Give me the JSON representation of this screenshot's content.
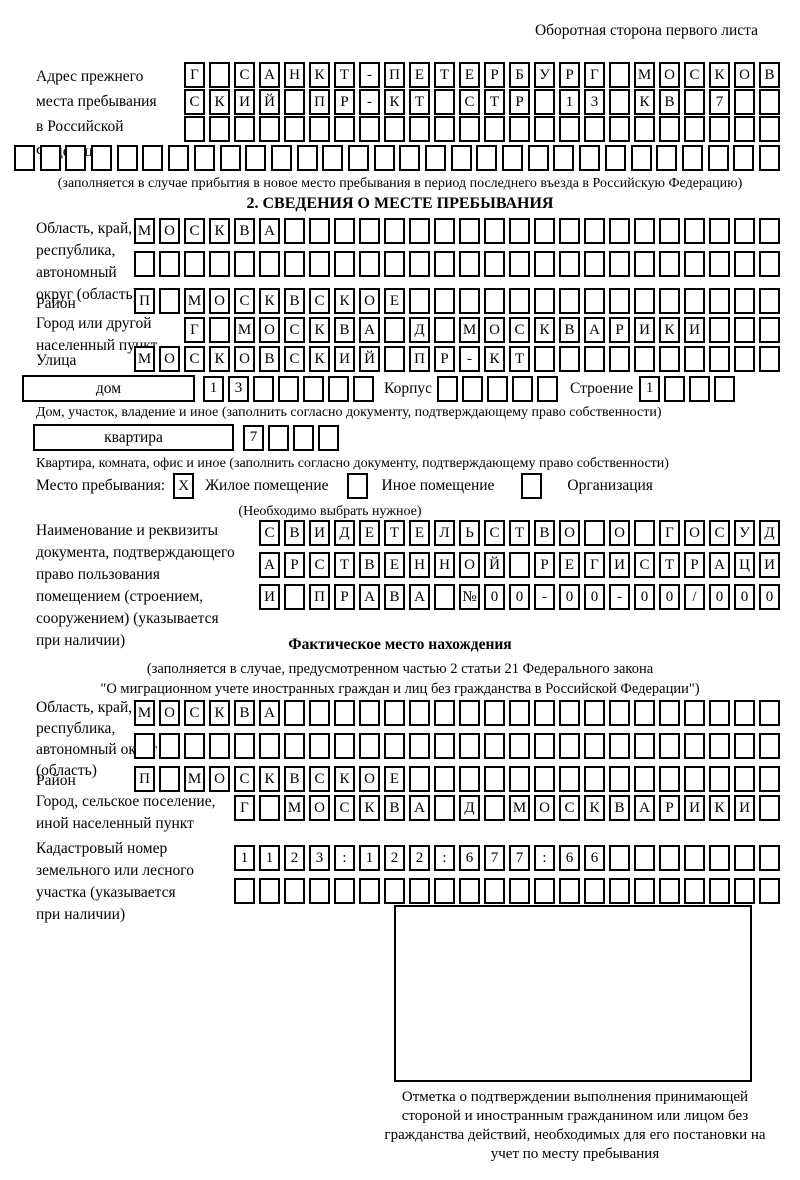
{
  "page": {
    "header": "Оборотная сторона первого листа"
  },
  "prev_address": {
    "label": "Адрес прежнего\nместа пребывания\nв Российской\nФедерации",
    "row1": [
      "Г",
      "",
      "С",
      "А",
      "Н",
      "К",
      "Т",
      "-",
      "П",
      "Е",
      "Т",
      "Е",
      "Р",
      "Б",
      "У",
      "Р",
      "Г",
      "",
      "М",
      "О",
      "С",
      "К",
      "О",
      "В"
    ],
    "row2": [
      "С",
      "К",
      "И",
      "Й",
      "",
      "П",
      "Р",
      "-",
      "К",
      "Т",
      "",
      "С",
      "Т",
      "Р",
      "",
      "1",
      "3",
      "",
      "К",
      "В",
      "",
      "7",
      "",
      ""
    ],
    "row3": [
      "",
      "",
      "",
      "",
      "",
      "",
      "",
      "",
      "",
      "",
      "",
      "",
      "",
      "",
      "",
      "",
      "",
      "",
      "",
      "",
      "",
      "",
      "",
      ""
    ],
    "row4": [
      "",
      "",
      "",
      "",
      "",
      "",
      "",
      "",
      "",
      "",
      "",
      "",
      "",
      "",
      "",
      "",
      "",
      "",
      "",
      "",
      "",
      "",
      "",
      "",
      "",
      "",
      "",
      "",
      "",
      ""
    ],
    "note": "(заполняется в случае прибытия в новое место пребывания в период последнего въезда в Российскую Федерацию)"
  },
  "stay_info": {
    "title": "2. СВЕДЕНИЯ О МЕСТЕ ПРЕБЫВАНИЯ",
    "region": {
      "label": "Область, край,\nреспублика,\nавтономный\nокруг (область)",
      "row1": [
        "М",
        "О",
        "С",
        "К",
        "В",
        "А",
        "",
        "",
        "",
        "",
        "",
        "",
        "",
        "",
        "",
        "",
        "",
        "",
        "",
        "",
        "",
        "",
        "",
        "",
        "",
        ""
      ],
      "row2": [
        "",
        "",
        "",
        "",
        "",
        "",
        "",
        "",
        "",
        "",
        "",
        "",
        "",
        "",
        "",
        "",
        "",
        "",
        "",
        "",
        "",
        "",
        "",
        "",
        "",
        ""
      ]
    },
    "district": {
      "label": "Район",
      "row": [
        "П",
        "",
        "М",
        "О",
        "С",
        "К",
        "В",
        "С",
        "К",
        "О",
        "Е",
        "",
        "",
        "",
        "",
        "",
        "",
        "",
        "",
        "",
        "",
        "",
        "",
        "",
        "",
        ""
      ]
    },
    "city": {
      "label": "Город или другой\nнаселенный пункт",
      "row": [
        "Г",
        "",
        "М",
        "О",
        "С",
        "К",
        "В",
        "А",
        "",
        "Д",
        "",
        "М",
        "О",
        "С",
        "К",
        "В",
        "А",
        "Р",
        "И",
        "К",
        "И",
        "",
        "",
        ""
      ]
    },
    "street": {
      "label": "Улица",
      "row": [
        "М",
        "О",
        "С",
        "К",
        "О",
        "В",
        "С",
        "К",
        "И",
        "Й",
        "",
        "П",
        "Р",
        "-",
        "К",
        "Т",
        "",
        "",
        "",
        "",
        "",
        "",
        "",
        "",
        "",
        ""
      ]
    },
    "house": {
      "label": "дом",
      "boxes": [
        "1",
        "3",
        "",
        "",
        "",
        "",
        ""
      ],
      "korpus_label": "Корпус",
      "korpus_boxes": [
        "",
        "",
        "",
        "",
        ""
      ],
      "stroenie_label": "Строение",
      "stroenie_boxes": [
        "1",
        "",
        "",
        ""
      ]
    },
    "house_note": "Дом, участок, владение и иное (заполнить согласно документу, подтверждающему право собственности)",
    "apartment": {
      "label": "квартира",
      "boxes": [
        "7",
        "",
        "",
        ""
      ]
    },
    "apartment_note": "Квартира, комната, офис и иное (заполнить согласно документу, подтверждающему право собственности)",
    "stay_type": {
      "label": "Место пребывания:",
      "options": [
        {
          "checkbox": "X",
          "label": "Жилое помещение"
        },
        {
          "checkbox": "",
          "label": "Иное помещение"
        },
        {
          "checkbox": "",
          "label": "Организация"
        }
      ],
      "note": "(Необходимо выбрать нужное)"
    },
    "usage_doc": {
      "label": "Наименование и реквизиты\nдокумента, подтверждающего\nправо пользования\nпомещением (строением,\nсооружением) (указывается\nпри наличии)",
      "row1": [
        "С",
        "В",
        "И",
        "Д",
        "Е",
        "Т",
        "Е",
        "Л",
        "Ь",
        "С",
        "Т",
        "В",
        "О",
        "",
        "О",
        "",
        "Г",
        "О",
        "С",
        "У",
        "Д"
      ],
      "row2": [
        "А",
        "Р",
        "С",
        "Т",
        "В",
        "Е",
        "Н",
        "Н",
        "О",
        "Й",
        "",
        "Р",
        "Е",
        "Г",
        "И",
        "С",
        "Т",
        "Р",
        "А",
        "Ц",
        "И"
      ],
      "row3": [
        "И",
        "",
        "П",
        "Р",
        "А",
        "В",
        "А",
        "",
        "№",
        "0",
        "0",
        "-",
        "0",
        "0",
        "-",
        "0",
        "0",
        "/",
        "0",
        "0",
        "0"
      ]
    }
  },
  "actual_location": {
    "title": "Фактическое место нахождения",
    "note1": "(заполняется в случае, предусмотренном частью 2 статьи 21 Федерального закона",
    "note2": "\"О миграционном учете иностранных граждан и лиц без гражданства в Российской Федерации\")",
    "region": {
      "label": "Область, край,\nреспублика,\nавтономный округ\n(область)",
      "row1": [
        "М",
        "О",
        "С",
        "К",
        "В",
        "А",
        "",
        "",
        "",
        "",
        "",
        "",
        "",
        "",
        "",
        "",
        "",
        "",
        "",
        "",
        "",
        "",
        "",
        "",
        "",
        ""
      ],
      "row2": [
        "",
        "",
        "",
        "",
        "",
        "",
        "",
        "",
        "",
        "",
        "",
        "",
        "",
        "",
        "",
        "",
        "",
        "",
        "",
        "",
        "",
        "",
        "",
        "",
        "",
        ""
      ]
    },
    "district": {
      "label": "Район",
      "row": [
        "П",
        "",
        "М",
        "О",
        "С",
        "К",
        "В",
        "С",
        "К",
        "О",
        "Е",
        "",
        "",
        "",
        "",
        "",
        "",
        "",
        "",
        "",
        "",
        "",
        "",
        "",
        "",
        ""
      ]
    },
    "city": {
      "label": "Город, сельское поселение,\nиной населенный пункт",
      "row": [
        "Г",
        "",
        "М",
        "О",
        "С",
        "К",
        "В",
        "А",
        "",
        "Д",
        "",
        "М",
        "О",
        "С",
        "К",
        "В",
        "А",
        "Р",
        "И",
        "К",
        "И",
        ""
      ]
    },
    "cadastre": {
      "label": "Кадастровый номер\nземельного или лесного\nучастка (указывается\nпри наличии)",
      "row1": [
        "1",
        "1",
        "2",
        "3",
        ":",
        "1",
        "2",
        "2",
        ":",
        "6",
        "7",
        "7",
        ":",
        "6",
        "6",
        "",
        "",
        "",
        "",
        "",
        "",
        ""
      ],
      "row2": [
        "",
        "",
        "",
        "",
        "",
        "",
        "",
        "",
        "",
        "",
        "",
        "",
        "",
        "",
        "",
        "",
        "",
        "",
        "",
        "",
        "",
        ""
      ]
    }
  },
  "confirmation": {
    "caption": "Отметка о подтверждении выполнения принимающей стороной и иностранным гражданином или лицом без гражданства действий, необходимых для его постановки на учет по месту пребывания"
  }
}
